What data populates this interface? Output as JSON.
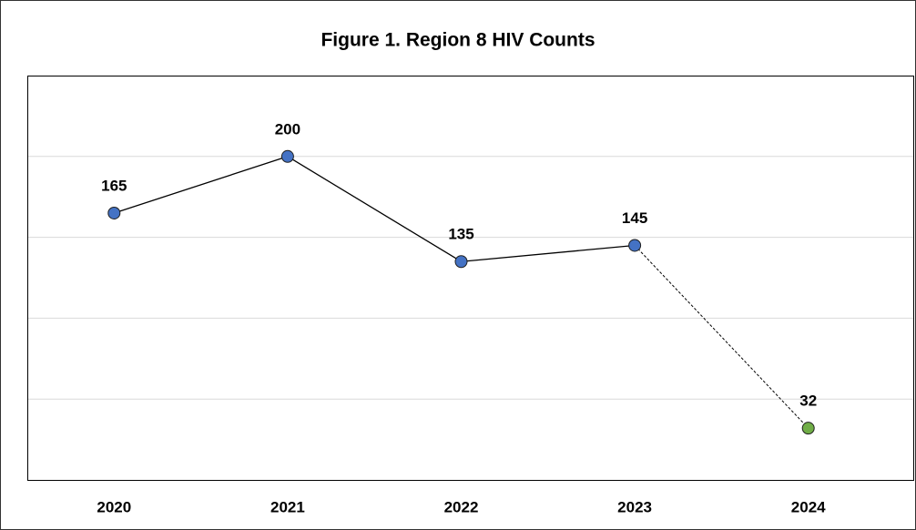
{
  "chart_data": {
    "type": "line",
    "title": "Figure 1. Region 8 HIV Counts",
    "categories": [
      "2020",
      "2021",
      "2022",
      "2023",
      "2024"
    ],
    "values": [
      165,
      200,
      135,
      145,
      32
    ],
    "color": "#000000",
    "marker_colors": [
      "#4472c4",
      "#4472c4",
      "#4472c4",
      "#4472c4",
      "#70ad47"
    ],
    "segment_styles": [
      "solid",
      "solid",
      "solid",
      "dashed"
    ],
    "ylim": [
      0,
      250
    ],
    "yticks": [
      50,
      100,
      150,
      200
    ],
    "grid": true
  }
}
